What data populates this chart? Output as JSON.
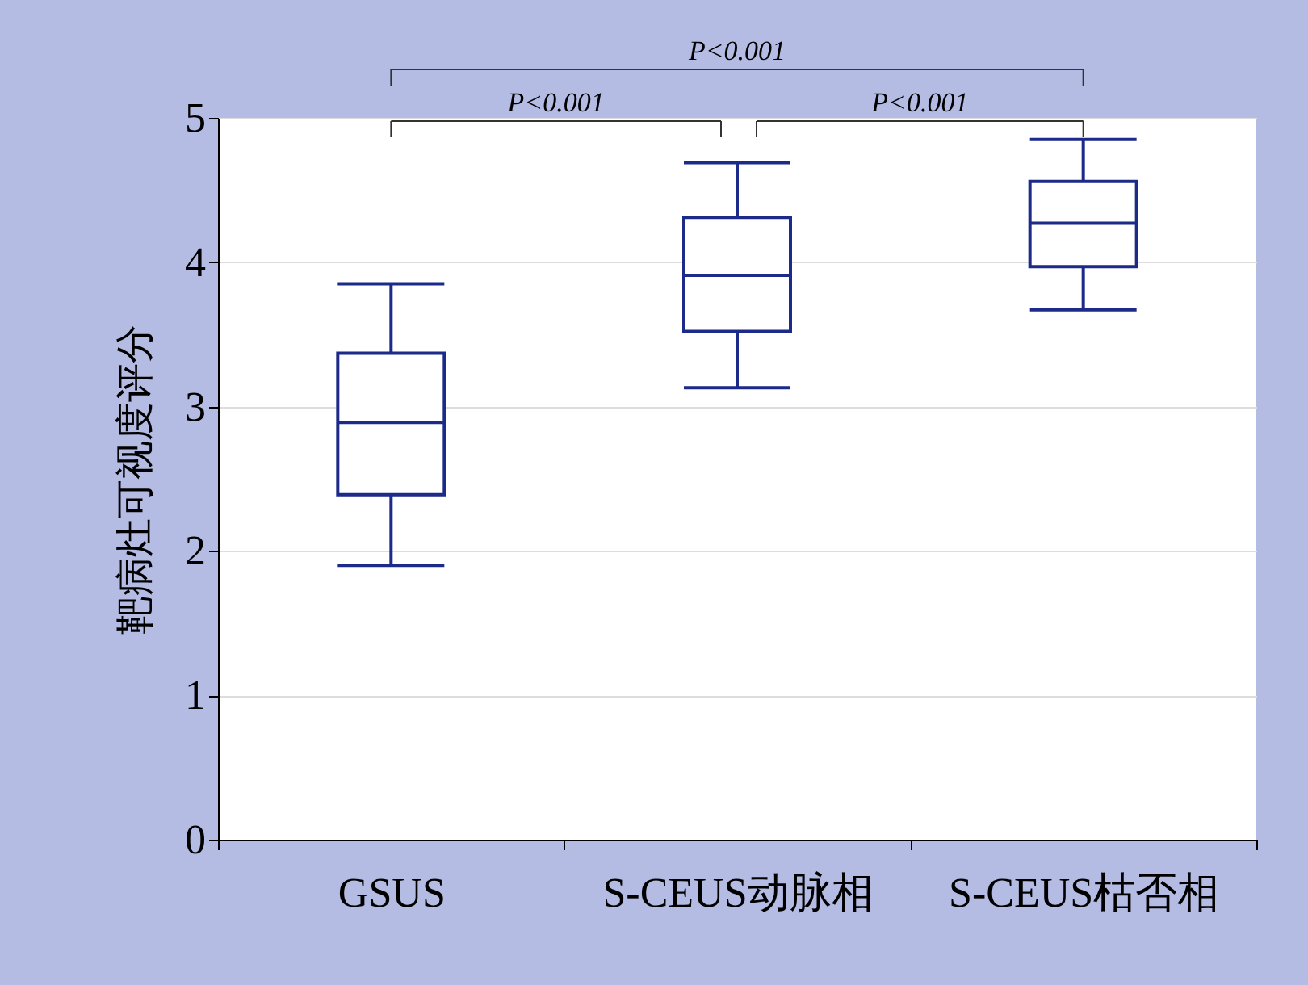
{
  "chart_data": {
    "type": "box",
    "ylabel": "靶病灶可视度评分",
    "categories": [
      "GSUS",
      "S-CEUS动脉相",
      "S-CEUS枯否相"
    ],
    "color": "#1c2a8a",
    "boxes": [
      {
        "low": 1.9,
        "q1": 2.39,
        "median": 2.89,
        "q3": 3.37,
        "high": 3.85
      },
      {
        "low": 3.13,
        "q1": 3.52,
        "median": 3.91,
        "q3": 4.31,
        "high": 4.69
      },
      {
        "low": 3.67,
        "q1": 3.97,
        "median": 4.27,
        "q3": 4.56,
        "high": 4.85
      }
    ],
    "ylim": [
      0,
      5
    ],
    "yticks": [
      0,
      1,
      2,
      3,
      4,
      5
    ],
    "grid": "y",
    "annotations": [
      "P<0.001",
      "P<0.001",
      "P<0.001"
    ]
  }
}
